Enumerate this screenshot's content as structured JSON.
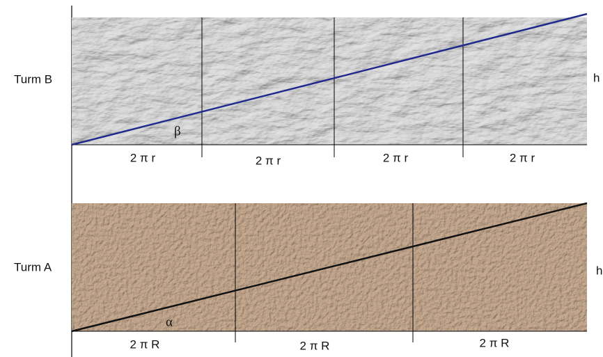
{
  "towers": [
    {
      "label": "Turm B",
      "height_label": "h",
      "angle_label": "β",
      "segments": [
        "2 π r",
        "2 π r",
        "2 π r",
        "2 π r"
      ]
    },
    {
      "label": "Turm A",
      "height_label": "h",
      "angle_label": "α",
      "segments": [
        "2 π R",
        "2 π R",
        "2 π R"
      ]
    }
  ]
}
